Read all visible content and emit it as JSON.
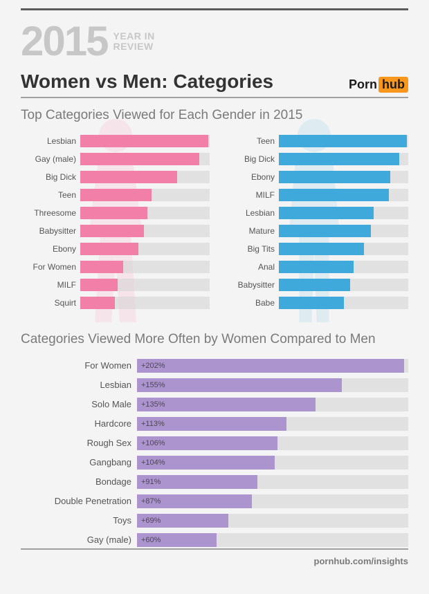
{
  "header": {
    "year": "2015",
    "yearline1": "YEAR IN",
    "yearline2": "REVIEW",
    "year_color": "#c7c7c7"
  },
  "title": "Women vs Men: Categories",
  "title_color": "#333333",
  "logo": {
    "part1": "Porn",
    "part2": "hub",
    "hub_bg": "#f7971d",
    "hub_fg": "#1b1b1b"
  },
  "subtitle1": "Top Categories Viewed for Each Gender in 2015",
  "subtitle2": "Categories Viewed More Often by Women Compared to Men",
  "subtitle_color": "#7a7a7a",
  "background_color": "#f4f4f4",
  "track_color": "rgba(210,210,210,0.55)",
  "label_color": "#555555",
  "women_chart": {
    "type": "bar",
    "bar_color": "#f27fa8",
    "silhouette_color": "#f8c7da",
    "max": 100,
    "items": [
      {
        "label": "Lesbian",
        "value": 99
      },
      {
        "label": "Gay (male)",
        "value": 92
      },
      {
        "label": "Big Dick",
        "value": 75
      },
      {
        "label": "Teen",
        "value": 55
      },
      {
        "label": "Threesome",
        "value": 52
      },
      {
        "label": "Babysitter",
        "value": 49
      },
      {
        "label": "Ebony",
        "value": 45
      },
      {
        "label": "For Women",
        "value": 33
      },
      {
        "label": "MILF",
        "value": 29
      },
      {
        "label": "Squirt",
        "value": 27
      }
    ]
  },
  "men_chart": {
    "type": "bar",
    "bar_color": "#3fa9db",
    "silhouette_color": "#b7dff0",
    "max": 100,
    "items": [
      {
        "label": "Teen",
        "value": 99
      },
      {
        "label": "Big Dick",
        "value": 93
      },
      {
        "label": "Ebony",
        "value": 86
      },
      {
        "label": "MILF",
        "value": 85
      },
      {
        "label": "Lesbian",
        "value": 73
      },
      {
        "label": "Mature",
        "value": 71
      },
      {
        "label": "Big Tits",
        "value": 66
      },
      {
        "label": "Anal",
        "value": 58
      },
      {
        "label": "Babysitter",
        "value": 55
      },
      {
        "label": "Babe",
        "value": 50
      }
    ]
  },
  "comparison_chart": {
    "type": "bar",
    "bar_color": "#ac94cf",
    "max": 205,
    "items": [
      {
        "label": "For Women",
        "value": 202,
        "display": "+202%"
      },
      {
        "label": "Lesbian",
        "value": 155,
        "display": "+155%"
      },
      {
        "label": "Solo Male",
        "value": 135,
        "display": "+135%"
      },
      {
        "label": "Hardcore",
        "value": 113,
        "display": "+113%"
      },
      {
        "label": "Rough Sex",
        "value": 106,
        "display": "+106%"
      },
      {
        "label": "Gangbang",
        "value": 104,
        "display": "+104%"
      },
      {
        "label": "Bondage",
        "value": 91,
        "display": "+91%"
      },
      {
        "label": "Double Penetration",
        "value": 87,
        "display": "+87%"
      },
      {
        "label": "Toys",
        "value": 69,
        "display": "+69%"
      },
      {
        "label": "Gay (male)",
        "value": 60,
        "display": "+60%"
      }
    ]
  },
  "footer": {
    "text": "pornhub.com/insights",
    "color": "#7a7a7a"
  }
}
